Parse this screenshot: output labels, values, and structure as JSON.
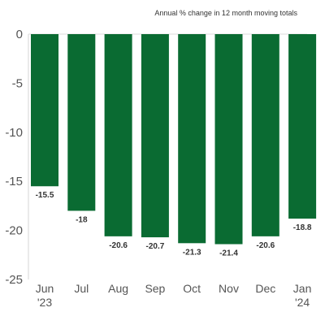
{
  "chart_data": {
    "type": "bar",
    "subtitle": "Annual % change in 12 month moving totals",
    "categories": [
      [
        "Jun",
        "'23"
      ],
      [
        "Jul"
      ],
      [
        "Aug"
      ],
      [
        "Sep"
      ],
      [
        "Oct"
      ],
      [
        "Nov"
      ],
      [
        "Dec"
      ],
      [
        "Jan",
        "'24"
      ]
    ],
    "values": [
      -15.5,
      -18,
      -20.6,
      -20.7,
      -21.3,
      -21.4,
      -20.6,
      -18.8
    ],
    "data_labels": [
      "-15.5",
      "-18",
      "-20.6",
      "-20.7",
      "-21.3",
      "-21.4",
      "-20.6",
      "-18.8"
    ],
    "y_ticks": [
      0,
      -5,
      -10,
      -15,
      -20,
      -25
    ],
    "y_tick_labels": [
      "0",
      "-5",
      "-10",
      "-15",
      "-20",
      "-25"
    ],
    "ylim": [
      -25,
      0
    ],
    "grid": false,
    "legend": "none",
    "bar_color": "#0a6b32",
    "axis_color": "#e3e3e3"
  }
}
